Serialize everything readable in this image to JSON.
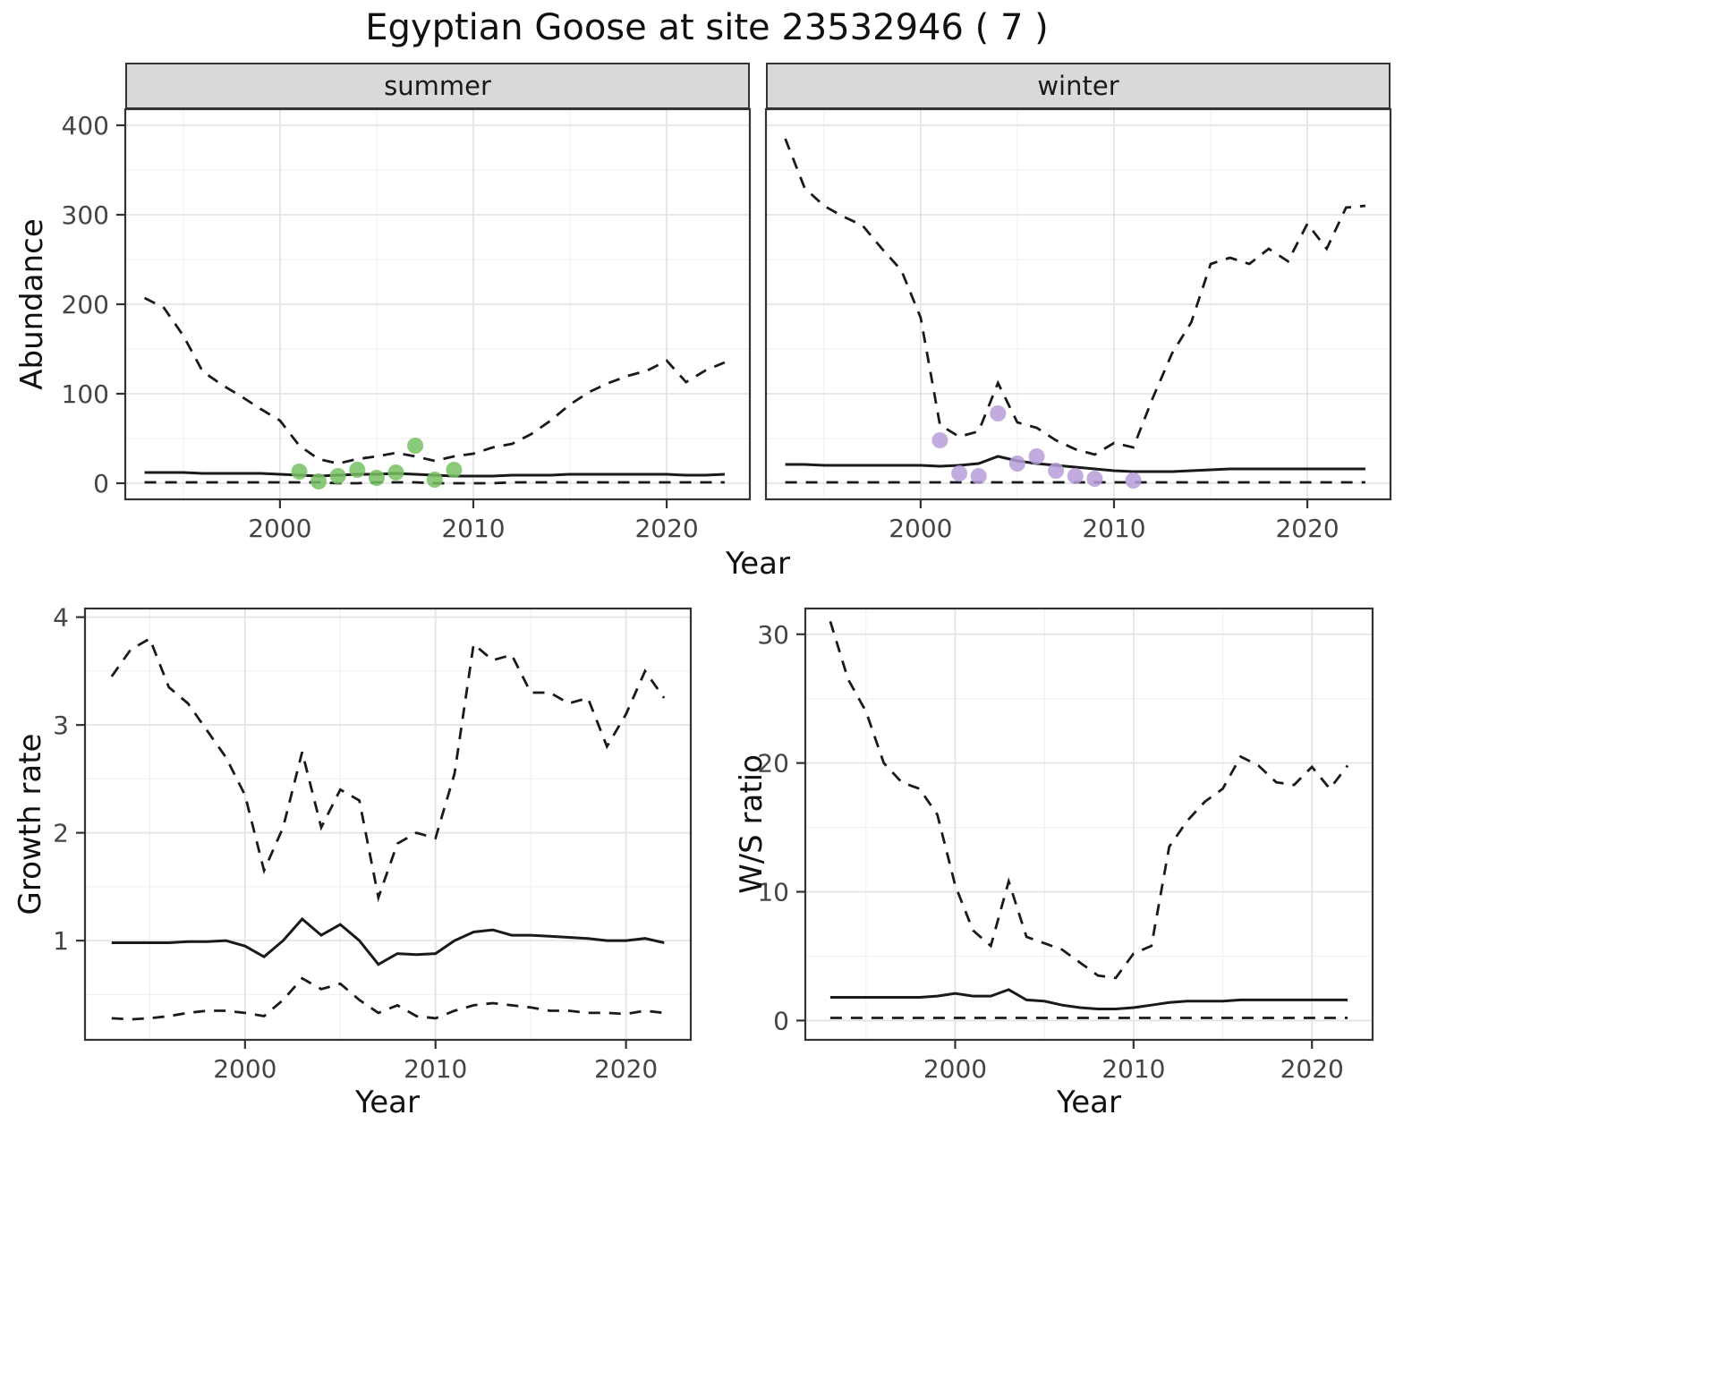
{
  "title": "Egyptian Goose at site 23532946 ( 7 )",
  "palette": {
    "line": "#1a1a1a",
    "panel_border": "#333333",
    "grid_major": "#e4e4e4",
    "grid_minor": "#f1f1f1",
    "strip_background": "#d9d9d9",
    "tick_label": "#454545",
    "summer_points": "#76c163",
    "winter_points": "#b79cd8"
  },
  "chart_data": [
    {
      "id": "abundance-summer",
      "type": "line",
      "facet_label": "summer",
      "xlabel": "Year",
      "ylabel": "Abundance",
      "xlim": [
        1992,
        2024.3
      ],
      "ylim": [
        -18,
        418
      ],
      "xticks": [
        2000,
        2010,
        2020
      ],
      "yticks": [
        0,
        100,
        200,
        300,
        400
      ],
      "grid": "on",
      "legend": "none",
      "x": [
        1993,
        1994,
        1995,
        1996,
        1997,
        1998,
        1999,
        2000,
        2001,
        2002,
        2003,
        2004,
        2005,
        2006,
        2007,
        2008,
        2009,
        2010,
        2011,
        2012,
        2013,
        2014,
        2015,
        2016,
        2017,
        2018,
        2019,
        2020,
        2021,
        2022,
        2023
      ],
      "series": [
        {
          "name": "upper-ci",
          "style": "dashed",
          "values": [
            207,
            196,
            165,
            125,
            110,
            97,
            83,
            70,
            42,
            27,
            22,
            27,
            30,
            34,
            30,
            25,
            30,
            33,
            40,
            44,
            55,
            70,
            88,
            102,
            112,
            120,
            126,
            137,
            113,
            126,
            135
          ]
        },
        {
          "name": "estimate",
          "style": "solid",
          "values": [
            12,
            12,
            12,
            11,
            11,
            11,
            11,
            10,
            9,
            8,
            9,
            10,
            10,
            11,
            10,
            9,
            8,
            8,
            8,
            9,
            9,
            9,
            10,
            10,
            10,
            10,
            10,
            10,
            9,
            9,
            10
          ]
        },
        {
          "name": "lower-ci",
          "style": "dashed",
          "values": [
            1,
            1,
            1,
            1,
            1,
            1,
            1,
            1,
            1,
            1,
            0,
            0,
            1,
            1,
            1,
            0,
            0,
            0,
            0,
            1,
            1,
            1,
            1,
            1,
            1,
            1,
            1,
            1,
            1,
            1,
            1
          ]
        }
      ],
      "points": {
        "name": "observed-summer-counts",
        "color": "#76c163",
        "x": [
          2001,
          2002,
          2003,
          2004,
          2005,
          2006,
          2007,
          2008,
          2009
        ],
        "values": [
          13,
          2,
          8,
          15,
          6,
          12,
          42,
          4,
          15
        ]
      }
    },
    {
      "id": "abundance-winter",
      "type": "line",
      "facet_label": "winter",
      "xlabel": "Year",
      "ylabel": "Abundance",
      "xlim": [
        1992,
        2024.3
      ],
      "ylim": [
        -18,
        418
      ],
      "xticks": [
        2000,
        2010,
        2020
      ],
      "yticks": [
        0,
        100,
        200,
        300,
        400
      ],
      "grid": "on",
      "legend": "none",
      "x": [
        1993,
        1994,
        1995,
        1996,
        1997,
        1998,
        1999,
        2000,
        2001,
        2002,
        2003,
        2004,
        2005,
        2006,
        2007,
        2008,
        2009,
        2010,
        2011,
        2012,
        2013,
        2014,
        2015,
        2016,
        2017,
        2018,
        2019,
        2020,
        2021,
        2022,
        2023
      ],
      "series": [
        {
          "name": "upper-ci",
          "style": "dashed",
          "values": [
            385,
            330,
            310,
            298,
            288,
            262,
            238,
            185,
            65,
            52,
            58,
            112,
            68,
            62,
            48,
            38,
            32,
            45,
            40,
            95,
            145,
            180,
            245,
            252,
            245,
            262,
            248,
            290,
            262,
            308,
            310
          ]
        },
        {
          "name": "estimate",
          "style": "solid",
          "values": [
            21,
            21,
            20,
            20,
            20,
            20,
            20,
            20,
            19,
            20,
            22,
            30,
            25,
            22,
            20,
            18,
            16,
            14,
            13,
            13,
            13,
            14,
            15,
            16,
            16,
            16,
            16,
            16,
            16,
            16,
            16
          ]
        },
        {
          "name": "lower-ci",
          "style": "dashed",
          "values": [
            1,
            1,
            1,
            1,
            1,
            1,
            1,
            1,
            1,
            1,
            1,
            1,
            1,
            1,
            1,
            1,
            1,
            1,
            1,
            1,
            1,
            1,
            1,
            1,
            1,
            1,
            1,
            1,
            1,
            1,
            1
          ]
        }
      ],
      "points": {
        "name": "observed-winter-counts",
        "color": "#b79cd8",
        "x": [
          2001,
          2002,
          2003,
          2004,
          2005,
          2006,
          2007,
          2008,
          2009,
          2011
        ],
        "values": [
          48,
          11,
          8,
          78,
          22,
          30,
          14,
          8,
          5,
          3
        ]
      }
    },
    {
      "id": "growth-rate",
      "type": "line",
      "xlabel": "Year",
      "ylabel": "Growth rate",
      "xlim": [
        1991.6,
        2023.4
      ],
      "ylim": [
        0.08,
        4.08
      ],
      "xticks": [
        2000,
        2010,
        2020
      ],
      "yticks": [
        1,
        2,
        3,
        4
      ],
      "grid": "on",
      "legend": "none",
      "x": [
        1993,
        1994,
        1995,
        1996,
        1997,
        1998,
        1999,
        2000,
        2001,
        2002,
        2003,
        2004,
        2005,
        2006,
        2007,
        2008,
        2009,
        2010,
        2011,
        2012,
        2013,
        2014,
        2015,
        2016,
        2017,
        2018,
        2019,
        2020,
        2021,
        2022
      ],
      "series": [
        {
          "name": "upper-ci",
          "style": "dashed",
          "values": [
            3.45,
            3.7,
            3.8,
            3.35,
            3.2,
            2.95,
            2.7,
            2.35,
            1.65,
            2.05,
            2.75,
            2.05,
            2.4,
            2.3,
            1.4,
            1.9,
            2.0,
            1.95,
            2.55,
            3.75,
            3.6,
            3.65,
            3.3,
            3.3,
            3.2,
            3.25,
            2.8,
            3.1,
            3.5,
            3.25
          ]
        },
        {
          "name": "estimate",
          "style": "solid",
          "values": [
            0.98,
            0.98,
            0.98,
            0.98,
            0.99,
            0.99,
            1.0,
            0.95,
            0.85,
            1.0,
            1.2,
            1.05,
            1.15,
            1.0,
            0.78,
            0.88,
            0.87,
            0.88,
            1.0,
            1.08,
            1.1,
            1.05,
            1.05,
            1.04,
            1.03,
            1.02,
            1.0,
            1.0,
            1.02,
            0.98
          ]
        },
        {
          "name": "lower-ci",
          "style": "dashed",
          "values": [
            0.28,
            0.27,
            0.28,
            0.3,
            0.33,
            0.35,
            0.35,
            0.33,
            0.3,
            0.45,
            0.65,
            0.55,
            0.6,
            0.45,
            0.33,
            0.4,
            0.3,
            0.28,
            0.35,
            0.4,
            0.42,
            0.4,
            0.38,
            0.35,
            0.35,
            0.33,
            0.33,
            0.32,
            0.35,
            0.33
          ]
        }
      ]
    },
    {
      "id": "ws-ratio",
      "type": "line",
      "xlabel": "Year",
      "ylabel": "W/S ratio",
      "xlim": [
        1991.6,
        2023.4
      ],
      "ylim": [
        -1.5,
        32
      ],
      "xticks": [
        2000,
        2010,
        2020
      ],
      "yticks": [
        0,
        10,
        20,
        30
      ],
      "grid": "on",
      "legend": "none",
      "x": [
        1993,
        1994,
        1995,
        1996,
        1997,
        1998,
        1999,
        2000,
        2001,
        2002,
        2003,
        2004,
        2005,
        2006,
        2007,
        2008,
        2009,
        2010,
        2011,
        2012,
        2013,
        2014,
        2015,
        2016,
        2017,
        2018,
        2019,
        2020,
        2021,
        2022
      ],
      "series": [
        {
          "name": "upper-ci",
          "style": "dashed",
          "values": [
            31,
            26.5,
            24,
            20,
            18.5,
            18,
            16,
            10.5,
            7,
            5.8,
            10.8,
            6.5,
            6,
            5.5,
            4.5,
            3.5,
            3.3,
            5.2,
            5.8,
            13.5,
            15.5,
            17,
            18,
            20.5,
            19.8,
            18.5,
            18.3,
            19.7,
            18,
            19.8
          ]
        },
        {
          "name": "estimate",
          "style": "solid",
          "values": [
            1.8,
            1.8,
            1.8,
            1.8,
            1.8,
            1.8,
            1.9,
            2.1,
            1.9,
            1.9,
            2.4,
            1.6,
            1.5,
            1.2,
            1.0,
            0.9,
            0.9,
            1.0,
            1.2,
            1.4,
            1.5,
            1.5,
            1.5,
            1.6,
            1.6,
            1.6,
            1.6,
            1.6,
            1.6,
            1.6
          ]
        },
        {
          "name": "lower-ci",
          "style": "dashed",
          "values": [
            0.2,
            0.2,
            0.2,
            0.2,
            0.2,
            0.2,
            0.2,
            0.2,
            0.2,
            0.2,
            0.2,
            0.2,
            0.2,
            0.2,
            0.2,
            0.2,
            0.2,
            0.2,
            0.2,
            0.2,
            0.2,
            0.2,
            0.2,
            0.2,
            0.2,
            0.2,
            0.2,
            0.2,
            0.2,
            0.2
          ]
        }
      ]
    }
  ]
}
